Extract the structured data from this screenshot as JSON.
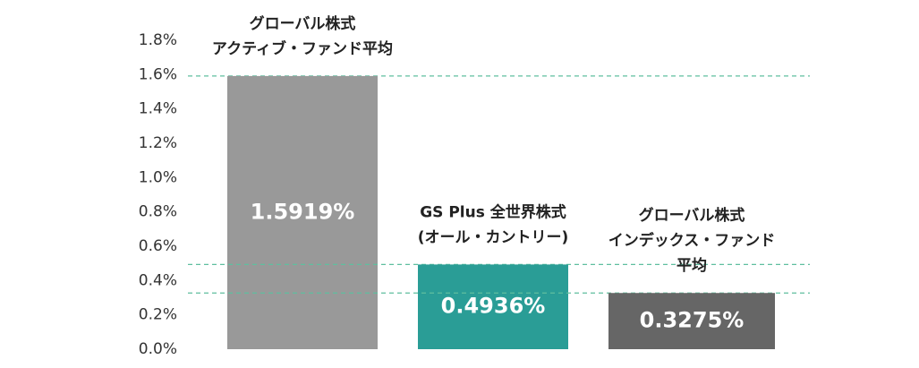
{
  "chart_data": {
    "type": "bar",
    "categories": [
      "グローバル株式\nアクティブ・ファンド平均",
      "GS Plus  全世界株式\n(オール・カントリー)",
      "グローバル株式\nインデックス・ファンド\n平均"
    ],
    "values": [
      1.5919,
      0.4936,
      0.3275
    ],
    "value_labels": [
      "1.5919%",
      "0.4936%",
      "0.3275%"
    ],
    "colors": [
      "#999999",
      "#2a9d96",
      "#666666"
    ],
    "ylim": [
      0,
      1.8
    ],
    "yticks": [
      {
        "value": 0,
        "label": "0.0%"
      },
      {
        "value": 0.2,
        "label": "0.2%"
      },
      {
        "value": 0.4,
        "label": "0.4%"
      },
      {
        "value": 0.6,
        "label": "0.6%"
      },
      {
        "value": 0.8,
        "label": "0.8%"
      },
      {
        "value": 1.0,
        "label": "1.0%"
      },
      {
        "value": 1.2,
        "label": "1.2%"
      },
      {
        "value": 1.4,
        "label": "1.4%"
      },
      {
        "value": 1.6,
        "label": "1.6%"
      },
      {
        "value": 1.8,
        "label": "1.8%"
      }
    ],
    "reference_lines": true,
    "reference_line_color": "#5fbf9f"
  }
}
